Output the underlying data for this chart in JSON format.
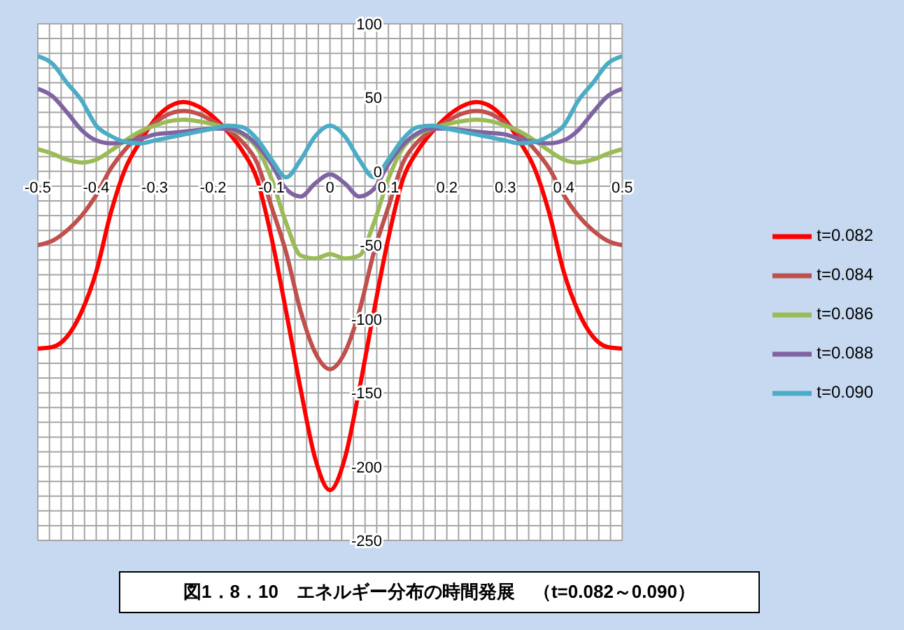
{
  "chart_data": {
    "type": "line",
    "title": "図1．8．10　エネルギー分布の時間発展　（t=0.082～0.090）",
    "x": [
      -0.5,
      -0.475,
      -0.45,
      -0.425,
      -0.4,
      -0.375,
      -0.35,
      -0.325,
      -0.3,
      -0.275,
      -0.25,
      -0.225,
      -0.2,
      -0.175,
      -0.15,
      -0.125,
      -0.1,
      -0.075,
      -0.05,
      -0.025,
      0,
      0.025,
      0.05,
      0.075,
      0.1,
      0.125,
      0.15,
      0.175,
      0.2,
      0.225,
      0.25,
      0.275,
      0.3,
      0.325,
      0.35,
      0.375,
      0.4,
      0.425,
      0.45,
      0.475,
      0.5
    ],
    "series": [
      {
        "name": "t=0.082",
        "color": "#ff0000",
        "values": [
          -120,
          -119,
          -112,
          -95,
          -68,
          -28,
          2,
          20,
          35,
          44,
          47,
          44,
          37,
          27,
          14,
          -5,
          -45,
          -95,
          -148,
          -195,
          -216,
          -195,
          -148,
          -95,
          -45,
          -5,
          14,
          27,
          37,
          44,
          47,
          44,
          35,
          20,
          2,
          -28,
          -68,
          -95,
          -112,
          -119,
          -120
        ]
      },
      {
        "name": "t=0.084",
        "color": "#c0504d",
        "values": [
          -50,
          -47,
          -40,
          -30,
          -16,
          2,
          15,
          25,
          33,
          39,
          41,
          39,
          34,
          28,
          20,
          6,
          -24,
          -55,
          -95,
          -123,
          -134,
          -123,
          -95,
          -55,
          -24,
          6,
          20,
          28,
          34,
          39,
          41,
          39,
          33,
          25,
          15,
          2,
          -16,
          -30,
          -40,
          -47,
          -50
        ]
      },
      {
        "name": "t=0.086",
        "color": "#9bbb59",
        "values": [
          15,
          12,
          8,
          6,
          8,
          14,
          21,
          27,
          31,
          34,
          35,
          34,
          32,
          29,
          25,
          16,
          -5,
          -35,
          -57,
          -59,
          -56,
          -59,
          -57,
          -35,
          -5,
          16,
          25,
          29,
          32,
          34,
          35,
          34,
          31,
          27,
          21,
          14,
          8,
          6,
          8,
          12,
          15
        ]
      },
      {
        "name": "t=0.088",
        "color": "#8064a2",
        "values": [
          56,
          51,
          40,
          28,
          21,
          19,
          20,
          22,
          25,
          26,
          27,
          28,
          29,
          29,
          26,
          18,
          5,
          -12,
          -17,
          -8,
          -2,
          -8,
          -17,
          -12,
          5,
          18,
          26,
          29,
          29,
          28,
          27,
          26,
          25,
          22,
          20,
          19,
          21,
          28,
          40,
          51,
          56
        ]
      },
      {
        "name": "t=0.090",
        "color": "#4bacc6",
        "values": [
          78,
          73,
          60,
          48,
          31,
          24,
          20,
          19,
          21,
          23,
          25,
          27,
          29,
          31,
          30,
          22,
          8,
          -4,
          8,
          24,
          31,
          24,
          8,
          -4,
          8,
          22,
          30,
          31,
          29,
          27,
          25,
          23,
          21,
          19,
          20,
          24,
          31,
          48,
          60,
          73,
          78
        ]
      }
    ],
    "xlim": [
      -0.5,
      0.5
    ],
    "xticks": [
      -0.5,
      {
        "value": -0.48,
        "label": null
      },
      {
        "value": -0.46,
        "label": null
      },
      {
        "value": -0.44,
        "label": null
      },
      {
        "value": -0.42,
        "label": null
      },
      -0.4,
      {
        "value": -0.38,
        "label": null
      },
      {
        "value": -0.36,
        "label": null
      },
      {
        "value": -0.34,
        "label": null
      },
      {
        "value": -0.32,
        "label": null
      },
      -0.3,
      {
        "value": -0.28,
        "label": null
      },
      {
        "value": -0.26,
        "label": null
      },
      {
        "value": -0.24,
        "label": null
      },
      {
        "value": -0.22,
        "label": null
      },
      -0.2,
      {
        "value": -0.18,
        "label": null
      },
      {
        "value": -0.16,
        "label": null
      },
      {
        "value": -0.14,
        "label": null
      },
      {
        "value": -0.12,
        "label": null
      },
      -0.1,
      {
        "value": -0.08,
        "label": null
      },
      {
        "value": -0.06,
        "label": null
      },
      {
        "value": -0.04,
        "label": null
      },
      {
        "value": -0.02,
        "label": null
      },
      0,
      {
        "value": 0.02,
        "label": null
      },
      {
        "value": 0.04,
        "label": null
      },
      {
        "value": 0.06,
        "label": null
      },
      {
        "value": 0.08,
        "label": null
      },
      0.1,
      {
        "value": 0.12,
        "label": null
      },
      {
        "value": 0.14,
        "label": null
      },
      {
        "value": 0.16,
        "label": null
      },
      {
        "value": 0.18,
        "label": null
      },
      0.2,
      {
        "value": 0.22,
        "label": null
      },
      {
        "value": 0.24,
        "label": null
      },
      {
        "value": 0.26,
        "label": null
      },
      {
        "value": 0.28,
        "label": null
      },
      0.3,
      {
        "value": 0.32,
        "label": null
      },
      {
        "value": 0.34,
        "label": null
      },
      {
        "value": 0.36,
        "label": null
      },
      {
        "value": 0.38,
        "label": null
      },
      0.4,
      {
        "value": 0.42,
        "label": null
      },
      {
        "value": 0.44,
        "label": null
      },
      {
        "value": 0.46,
        "label": null
      },
      {
        "value": 0.48,
        "label": null
      },
      0.5
    ],
    "ylim": [
      -250,
      100
    ],
    "yticks": [
      -250,
      {
        "value": -240,
        "label": null
      },
      {
        "value": -230,
        "label": null
      },
      {
        "value": -220,
        "label": null
      },
      {
        "value": -210,
        "label": null
      },
      -200,
      {
        "value": -190,
        "label": null
      },
      {
        "value": -180,
        "label": null
      },
      {
        "value": -170,
        "label": null
      },
      {
        "value": -160,
        "label": null
      },
      -150,
      {
        "value": -140,
        "label": null
      },
      {
        "value": -130,
        "label": null
      },
      {
        "value": -120,
        "label": null
      },
      {
        "value": -110,
        "label": null
      },
      -100,
      {
        "value": -90,
        "label": null
      },
      {
        "value": -80,
        "label": null
      },
      {
        "value": -70,
        "label": null
      },
      {
        "value": -60,
        "label": null
      },
      -50,
      {
        "value": -40,
        "label": null
      },
      {
        "value": -30,
        "label": null
      },
      {
        "value": -20,
        "label": null
      },
      {
        "value": -10,
        "label": null
      },
      0,
      {
        "value": 10,
        "label": null
      },
      {
        "value": 20,
        "label": null
      },
      {
        "value": 30,
        "label": null
      },
      {
        "value": 40,
        "label": null
      },
      50,
      {
        "value": 60,
        "label": null
      },
      {
        "value": 70,
        "label": null
      },
      {
        "value": 80,
        "label": null
      },
      {
        "value": 90,
        "label": null
      },
      100
    ],
    "grid": true,
    "legend": "right",
    "marker": "none",
    "line_style": "solid"
  }
}
